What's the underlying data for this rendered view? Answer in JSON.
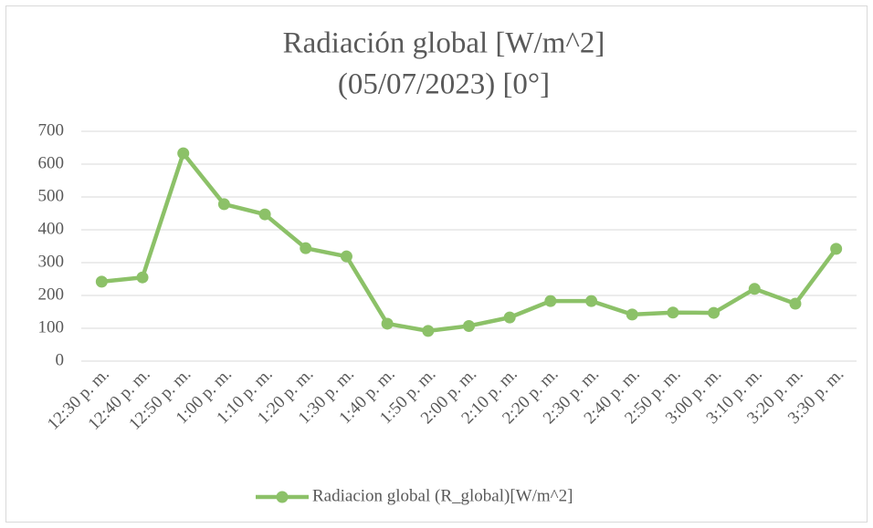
{
  "chart_data": {
    "type": "line",
    "title": [
      "Radiación global [W/m^2]",
      "(05/07/2023) [0°]"
    ],
    "categories": [
      "12:30 p. m.",
      "12:40 p. m.",
      "12:50 p. m.",
      "1:00 p. m.",
      "1:10 p. m.",
      "1:20 p. m.",
      "1:30 p. m.",
      "1:40 p. m.",
      "1:50 p. m.",
      "2:00 p. m.",
      "2:10 p. m.",
      "2:20 p. m.",
      "2:30 p. m.",
      "2:40 p. m.",
      "2:50 p. m.",
      "3:00 p. m.",
      "3:10 p. m.",
      "3:20 p. m.",
      "3:30 p. m."
    ],
    "series": [
      {
        "name": "Radiacion global (R_global)[W/m^2]",
        "color": "#8cc168",
        "values": [
          242,
          255,
          633,
          478,
          447,
          344,
          319,
          114,
          92,
          107,
          133,
          183,
          183,
          142,
          148,
          147,
          220,
          175,
          342
        ]
      }
    ],
    "ylim": [
      0,
      700
    ],
    "yticks": [
      0,
      100,
      200,
      300,
      400,
      500,
      600,
      700
    ],
    "grid": true,
    "legend": "bottom"
  }
}
